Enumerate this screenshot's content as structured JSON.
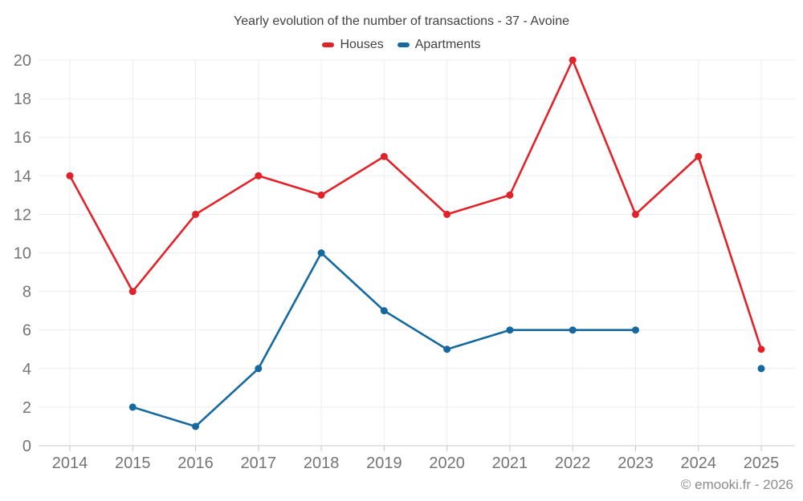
{
  "header": {
    "title": "Yearly evolution of the number of transactions - 37 - Avoine"
  },
  "footer": {
    "credit": "© emooki.fr - 2026"
  },
  "chart_data": {
    "type": "line",
    "title": "Yearly evolution of the number of transactions - 37 - Avoine",
    "x": [
      2014,
      2015,
      2016,
      2017,
      2018,
      2019,
      2020,
      2021,
      2022,
      2023,
      2024,
      2025
    ],
    "series": [
      {
        "name": "Houses",
        "color": "#e12329",
        "values": [
          14,
          8,
          12,
          14,
          13,
          15,
          12,
          13,
          20,
          12,
          15,
          5
        ]
      },
      {
        "name": "Apartments",
        "color": "#15699e",
        "values": [
          null,
          2,
          1,
          4,
          10,
          7,
          5,
          6,
          6,
          6,
          null,
          4
        ]
      }
    ],
    "xlabel": "",
    "ylabel": "",
    "ylim": [
      0,
      20
    ],
    "ytick_step": 2,
    "grid": true,
    "legend_position": "top",
    "style": {
      "grid_color": "#ededed",
      "axis_line_color": "#cccccc",
      "tick_color": "#c4c4c4",
      "axis_label_color": "#757575",
      "axis_font_size": 20,
      "line_width": 2.6,
      "marker_radius": 4.5
    }
  }
}
